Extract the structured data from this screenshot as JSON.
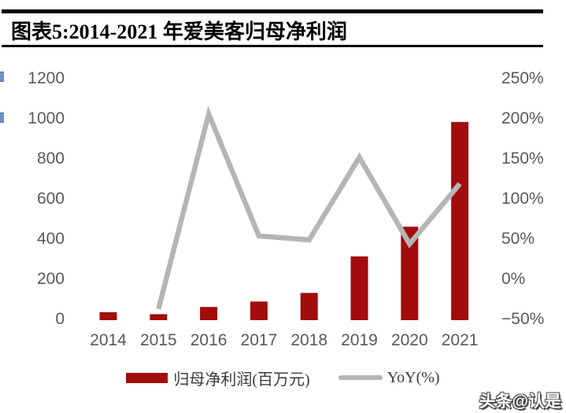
{
  "header": {
    "title": "图表5:2014-2021 年爱美客归母净利润"
  },
  "watermark": "头条@认是",
  "colors": {
    "bar": "#a20c0c",
    "line": "#b5b5b5",
    "axis_text": "#595959",
    "title_text": "#000000",
    "rule": "#000000",
    "edge_mark": "#6a92c9"
  },
  "chart_data": {
    "type": "bar",
    "subtype": "combo bar + line, dual axis",
    "title": "图表5:2014-2021 年爱美客归母净利润",
    "xlabel": "",
    "ylabel": "",
    "grid": false,
    "legend_position": "bottom",
    "categories": [
      "2014",
      "2015",
      "2016",
      "2017",
      "2018",
      "2019",
      "2020",
      "2021"
    ],
    "series": [
      {
        "name": "归母净利润(百万元)",
        "type": "bar",
        "axis": "left",
        "values": [
          32,
          22,
          58,
          85,
          128,
          310,
          458,
          980
        ]
      },
      {
        "name": "YoY(%)",
        "type": "line",
        "axis": "right",
        "values": [
          null,
          -38,
          205,
          53,
          48,
          151,
          43,
          118
        ]
      }
    ],
    "left_axis": {
      "min": 0,
      "max": 1200,
      "step": 200,
      "ticks": [
        {
          "value": 0,
          "label": "0"
        },
        {
          "value": 200,
          "label": "200"
        },
        {
          "value": 400,
          "label": "400"
        },
        {
          "value": 600,
          "label": "600"
        },
        {
          "value": 800,
          "label": "800"
        },
        {
          "value": 1000,
          "label": "1000"
        },
        {
          "value": 1200,
          "label": "1200"
        }
      ]
    },
    "right_axis": {
      "min": -50,
      "max": 250,
      "step": 50,
      "ticks": [
        {
          "value": -50,
          "label": "−50%"
        },
        {
          "value": 0,
          "label": "0%"
        },
        {
          "value": 50,
          "label": "50%"
        },
        {
          "value": 100,
          "label": "100%"
        },
        {
          "value": 150,
          "label": "150%"
        },
        {
          "value": 200,
          "label": "200%"
        },
        {
          "value": 250,
          "label": "250%"
        }
      ]
    },
    "legend": [
      {
        "label": "归母净利润(百万元)",
        "swatch": "bar"
      },
      {
        "label": "YoY(%)",
        "swatch": "line"
      }
    ]
  }
}
